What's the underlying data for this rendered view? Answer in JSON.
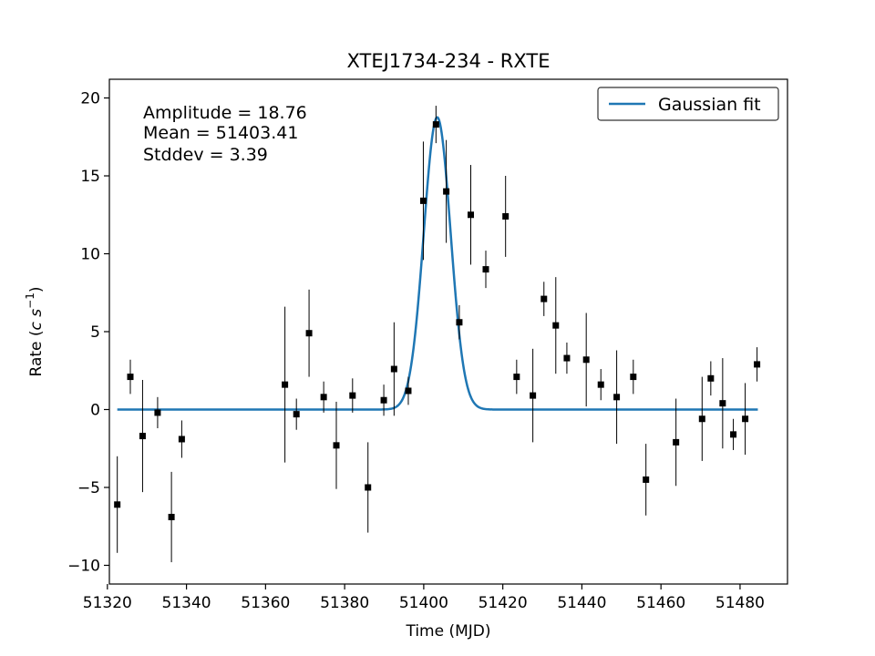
{
  "chart_data": {
    "type": "scatter",
    "title": "XTEJ1734-234 - RXTE",
    "xlabel": "Time (MJD)",
    "ylabel_prefix": "Rate (",
    "ylabel_unit": "c s",
    "ylabel_exp": "−1",
    "ylabel_suffix": ")",
    "xlim": [
      51320.5,
      51492
    ],
    "ylim": [
      -11.2,
      21.2
    ],
    "xticks": [
      51320,
      51340,
      51360,
      51380,
      51400,
      51420,
      51440,
      51460,
      51480
    ],
    "xtick_labels": [
      "51320",
      "51340",
      "51360",
      "51380",
      "51400",
      "51420",
      "51440",
      "51460",
      "51480"
    ],
    "yticks": [
      -10,
      -5,
      0,
      5,
      10,
      15,
      20
    ],
    "ytick_labels": [
      "−10",
      "−5",
      "0",
      "5",
      "10",
      "15",
      "20"
    ],
    "legend": {
      "position": "top-right",
      "entries": [
        "Gaussian fit"
      ]
    },
    "annotations": [
      "Amplitude = 18.76",
      "Mean = 51403.41",
      "Stddev = 3.39"
    ],
    "fit": {
      "amplitude": 18.76,
      "mean": 51403.41,
      "stddev": 3.39,
      "x_range": [
        51322.5,
        51484.5
      ],
      "color": "#1f77b4"
    },
    "series": [
      {
        "color": "#000000",
        "x": [
          51322.5,
          51325.8,
          51328.9,
          51332.7,
          51336.2,
          51338.8,
          51364.9,
          51367.8,
          51371.0,
          51374.7,
          51377.9,
          51382.0,
          51385.9,
          51389.9,
          51392.5,
          51396.1,
          51399.9,
          51403.1,
          51405.7,
          51409.0,
          51411.9,
          51415.7,
          51420.7,
          51423.5,
          51427.6,
          51430.4,
          51433.4,
          51436.2,
          51441.1,
          51444.8,
          51448.8,
          51453.0,
          51456.2,
          51463.8,
          51470.4,
          51472.6,
          51475.6,
          51478.3,
          51481.3,
          51484.3
        ],
        "y": [
          -6.1,
          2.1,
          -1.7,
          -0.2,
          -6.9,
          -1.9,
          1.6,
          -0.3,
          4.9,
          0.8,
          -2.3,
          0.9,
          -5.0,
          0.6,
          2.6,
          1.2,
          13.4,
          18.3,
          14.0,
          5.6,
          12.5,
          9.0,
          12.4,
          2.1,
          0.9,
          7.1,
          5.4,
          3.3,
          3.2,
          1.6,
          0.8,
          2.1,
          -4.5,
          -2.1,
          -0.6,
          2.0,
          0.4,
          -1.6,
          -0.6,
          2.9
        ],
        "err": [
          3.1,
          1.1,
          3.6,
          1.0,
          2.9,
          1.2,
          5.0,
          1.0,
          2.8,
          1.0,
          2.8,
          1.1,
          2.9,
          1.0,
          3.0,
          0.9,
          3.8,
          1.2,
          3.3,
          1.1,
          3.2,
          1.2,
          2.6,
          1.1,
          3.0,
          1.1,
          3.1,
          1.0,
          3.0,
          1.0,
          3.0,
          1.1,
          2.3,
          2.8,
          2.7,
          1.1,
          2.9,
          1.0,
          2.3,
          1.1
        ]
      }
    ]
  }
}
